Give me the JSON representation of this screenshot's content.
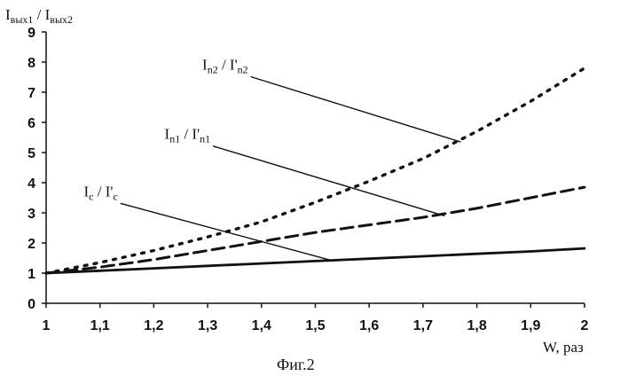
{
  "chart_data": {
    "type": "line",
    "ylabel": {
      "main": "I",
      "sub1": "вых1",
      "sep": " / I",
      "sub2": "вых2"
    },
    "xlabel": "W, раз",
    "caption": "Фиг.2",
    "xlim": [
      1,
      2
    ],
    "ylim": [
      0,
      9
    ],
    "x_ticks": [
      "1",
      "1,1",
      "1,2",
      "1,3",
      "1,4",
      "1,5",
      "1,6",
      "1,7",
      "1,8",
      "1,9",
      "2"
    ],
    "y_ticks": [
      "0",
      "1",
      "2",
      "3",
      "4",
      "5",
      "6",
      "7",
      "8",
      "9"
    ],
    "series": [
      {
        "id": "c",
        "style": "solid",
        "x": [
          1.0,
          1.1,
          1.2,
          1.3,
          1.4,
          1.5,
          1.6,
          1.7,
          1.8,
          1.9,
          2.0
        ],
        "y": [
          1.0,
          1.08,
          1.16,
          1.24,
          1.32,
          1.4,
          1.48,
          1.56,
          1.64,
          1.72,
          1.82
        ]
      },
      {
        "id": "n1",
        "style": "dashed",
        "x": [
          1.0,
          1.1,
          1.2,
          1.3,
          1.4,
          1.5,
          1.6,
          1.7,
          1.8,
          1.9,
          2.0
        ],
        "y": [
          1.0,
          1.2,
          1.45,
          1.75,
          2.05,
          2.35,
          2.6,
          2.85,
          3.15,
          3.5,
          3.85
        ]
      },
      {
        "id": "n2",
        "style": "dotted",
        "x": [
          1.0,
          1.1,
          1.2,
          1.3,
          1.4,
          1.5,
          1.6,
          1.7,
          1.8,
          1.9,
          2.0
        ],
        "y": [
          1.0,
          1.35,
          1.75,
          2.2,
          2.7,
          3.35,
          4.05,
          4.8,
          5.7,
          6.7,
          7.8
        ]
      }
    ],
    "annotations": [
      {
        "series": "c",
        "base": "I",
        "sub1": "c",
        "sep": " / I'",
        "sub2": "c",
        "at": [
          1.53,
          1.42
        ],
        "text_x": 1.07,
        "text_y": 3.55
      },
      {
        "series": "n1",
        "base": "I",
        "sub1": "n1",
        "sep": " / I'",
        "sub2": "n1",
        "at": [
          1.74,
          2.9
        ],
        "text_x": 1.22,
        "text_y": 5.45
      },
      {
        "series": "n2",
        "base": "I",
        "sub1": "n2",
        "sep": " / I'",
        "sub2": "n2",
        "at": [
          1.77,
          5.35
        ],
        "text_x": 1.29,
        "text_y": 7.75
      }
    ]
  }
}
